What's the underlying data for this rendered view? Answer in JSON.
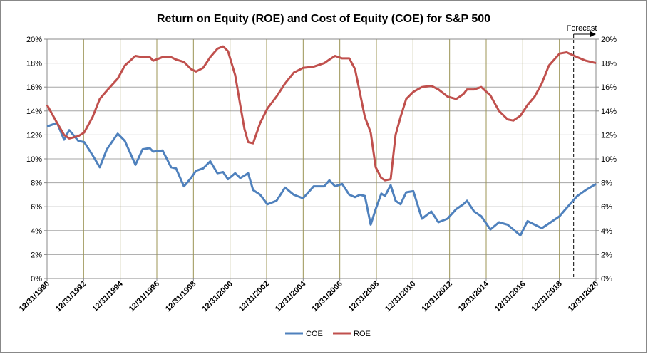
{
  "chart_data": {
    "type": "line",
    "title": "Return on Equity (ROE)  and  Cost of Equity (COE) for S&P 500",
    "x": [
      1990.0,
      1990.55,
      1990.93,
      1991.21,
      1991.71,
      1992.03,
      1992.49,
      1992.88,
      1993.27,
      1993.86,
      1994.25,
      1994.83,
      1995.22,
      1995.61,
      1995.8,
      1996.31,
      1996.78,
      1997.05,
      1997.48,
      1997.87,
      1998.14,
      1998.53,
      1998.92,
      1999.31,
      1999.62,
      1999.89,
      2000.28,
      2000.56,
      2000.79,
      2000.99,
      2001.26,
      2001.65,
      2002.04,
      2002.54,
      2003.01,
      2003.48,
      2003.99,
      2004.57,
      2005.15,
      2005.43,
      2005.74,
      2006.13,
      2006.52,
      2006.83,
      2007.1,
      2007.37,
      2007.69,
      2007.96,
      2008.27,
      2008.47,
      2008.78,
      2009.05,
      2009.32,
      2009.63,
      2010.02,
      2010.49,
      2011.0,
      2011.39,
      2011.89,
      2012.36,
      2012.75,
      2012.95,
      2013.34,
      2013.73,
      2014.23,
      2014.7,
      2015.17,
      2015.48,
      2015.87,
      2016.26,
      2016.65,
      2017.04,
      2017.43,
      2018.01,
      2018.4,
      2018.98,
      2019.45,
      2020.0
    ],
    "series": [
      {
        "name": "COE",
        "color": "#4f81bd",
        "values": [
          12.7,
          13.0,
          11.6,
          12.4,
          11.5,
          11.4,
          10.3,
          9.3,
          10.8,
          12.1,
          11.5,
          9.5,
          10.8,
          10.9,
          10.6,
          10.7,
          9.3,
          9.2,
          7.7,
          8.4,
          9.0,
          9.2,
          9.8,
          8.8,
          8.9,
          8.3,
          8.8,
          8.4,
          8.6,
          8.8,
          7.4,
          7.0,
          6.2,
          6.5,
          7.6,
          7.0,
          6.7,
          7.7,
          7.7,
          8.2,
          7.7,
          7.9,
          7.0,
          6.8,
          7.0,
          6.9,
          4.5,
          5.8,
          7.1,
          6.9,
          7.8,
          6.5,
          6.2,
          7.2,
          7.3,
          5.0,
          5.6,
          4.7,
          5.0,
          5.8,
          6.2,
          6.5,
          5.6,
          5.2,
          4.1,
          4.7,
          4.5,
          4.1,
          3.6,
          4.8,
          4.5,
          4.2,
          4.6,
          5.2,
          5.9,
          6.9,
          7.4,
          7.9
        ]
      },
      {
        "name": "ROE",
        "color": "#c0504d",
        "values": [
          14.5,
          13.0,
          12.0,
          11.7,
          11.9,
          12.2,
          13.5,
          15.0,
          15.7,
          16.7,
          17.8,
          18.6,
          18.5,
          18.5,
          18.2,
          18.5,
          18.5,
          18.3,
          18.1,
          17.5,
          17.3,
          17.6,
          18.5,
          19.2,
          19.4,
          19.0,
          17.0,
          14.5,
          12.5,
          11.4,
          11.3,
          13.0,
          14.2,
          15.2,
          16.3,
          17.2,
          17.6,
          17.7,
          18.0,
          18.3,
          18.6,
          18.4,
          18.4,
          17.5,
          15.5,
          13.5,
          12.2,
          9.3,
          8.4,
          8.2,
          8.3,
          12.0,
          13.5,
          15.0,
          15.6,
          16.0,
          16.1,
          15.8,
          15.2,
          15.0,
          15.4,
          15.8,
          15.8,
          16.0,
          15.3,
          14.0,
          13.3,
          13.2,
          13.6,
          14.5,
          15.2,
          16.3,
          17.8,
          18.8,
          18.9,
          18.5,
          18.2,
          18.0
        ]
      }
    ],
    "xlim": [
      1990,
      2020
    ],
    "xticks": [
      {
        "value": 1990,
        "label": "12/31/1990"
      },
      {
        "value": 1992,
        "label": "12/31/1992"
      },
      {
        "value": 1994,
        "label": "12/31/1994"
      },
      {
        "value": 1996,
        "label": "12/31/1996"
      },
      {
        "value": 1998,
        "label": "12/31/1998"
      },
      {
        "value": 2000,
        "label": "12/31/2000"
      },
      {
        "value": 2002,
        "label": "12/31/2002"
      },
      {
        "value": 2004,
        "label": "12/31/2004"
      },
      {
        "value": 2006,
        "label": "12/31/2006"
      },
      {
        "value": 2008,
        "label": "12/31/2008"
      },
      {
        "value": 2010,
        "label": "12/31/2010"
      },
      {
        "value": 2012,
        "label": "12/31/2012"
      },
      {
        "value": 2014,
        "label": "12/31/2014"
      },
      {
        "value": 2016,
        "label": "12/31/2016"
      },
      {
        "value": 2018,
        "label": "12/31/2018"
      },
      {
        "value": 2020,
        "label": "12/31/2020"
      }
    ],
    "ylim": [
      0,
      20
    ],
    "yticks": [
      {
        "value": 0,
        "label": "0%"
      },
      {
        "value": 2,
        "label": "2%"
      },
      {
        "value": 4,
        "label": "4%"
      },
      {
        "value": 6,
        "label": "6%"
      },
      {
        "value": 8,
        "label": "8%"
      },
      {
        "value": 10,
        "label": "10%"
      },
      {
        "value": 12,
        "label": "12%"
      },
      {
        "value": 14,
        "label": "14%"
      },
      {
        "value": 16,
        "label": "16%"
      },
      {
        "value": 18,
        "label": "18%"
      },
      {
        "value": 20,
        "label": "20%"
      }
    ],
    "y2lim": [
      0,
      20
    ],
    "y2ticks": [
      {
        "value": 0,
        "label": "0%"
      },
      {
        "value": 2,
        "label": "2%"
      },
      {
        "value": 4,
        "label": "4%"
      },
      {
        "value": 6,
        "label": "6%"
      },
      {
        "value": 8,
        "label": "8%"
      },
      {
        "value": 10,
        "label": "10%"
      },
      {
        "value": 12,
        "label": "12%"
      },
      {
        "value": 14,
        "label": "14%"
      },
      {
        "value": 16,
        "label": "16%"
      },
      {
        "value": 18,
        "label": "18%"
      },
      {
        "value": 20,
        "label": "20%"
      }
    ],
    "grid": true,
    "legend": "bottom",
    "forecast": {
      "label": "Forecast",
      "x": 2018.78
    }
  }
}
